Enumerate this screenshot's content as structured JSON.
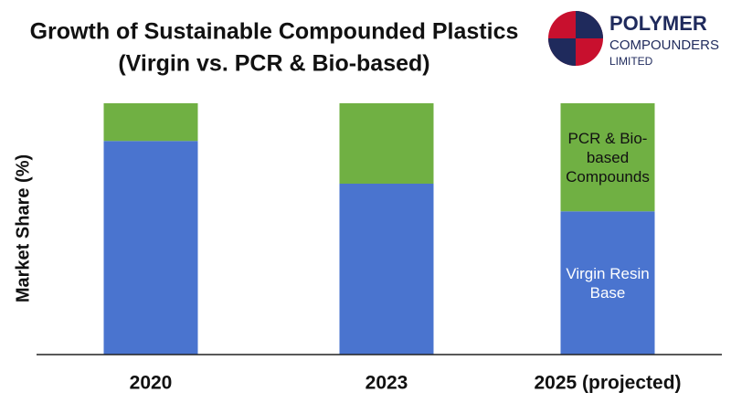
{
  "chart_data": {
    "type": "bar",
    "stacked": true,
    "title": "Growth of Sustainable Compounded Plastics",
    "subtitle": "(Virgin vs. PCR & Bio-based)",
    "y_label": "Market Share (%)",
    "categories": [
      "2020",
      "2023",
      "2025 (projected)"
    ],
    "series": [
      {
        "name": "Virgin Resin Base",
        "color": "#4a74cf",
        "values": [
          85,
          68,
          57
        ]
      },
      {
        "name": "PCR & Bio-based Compounds",
        "color": "#70b043",
        "values": [
          15,
          32,
          43
        ]
      }
    ],
    "ylim": [
      0,
      100
    ]
  },
  "logo": {
    "name": "POLYMER",
    "line2": "COMPOUNDERS",
    "line3": "LIMITED"
  }
}
